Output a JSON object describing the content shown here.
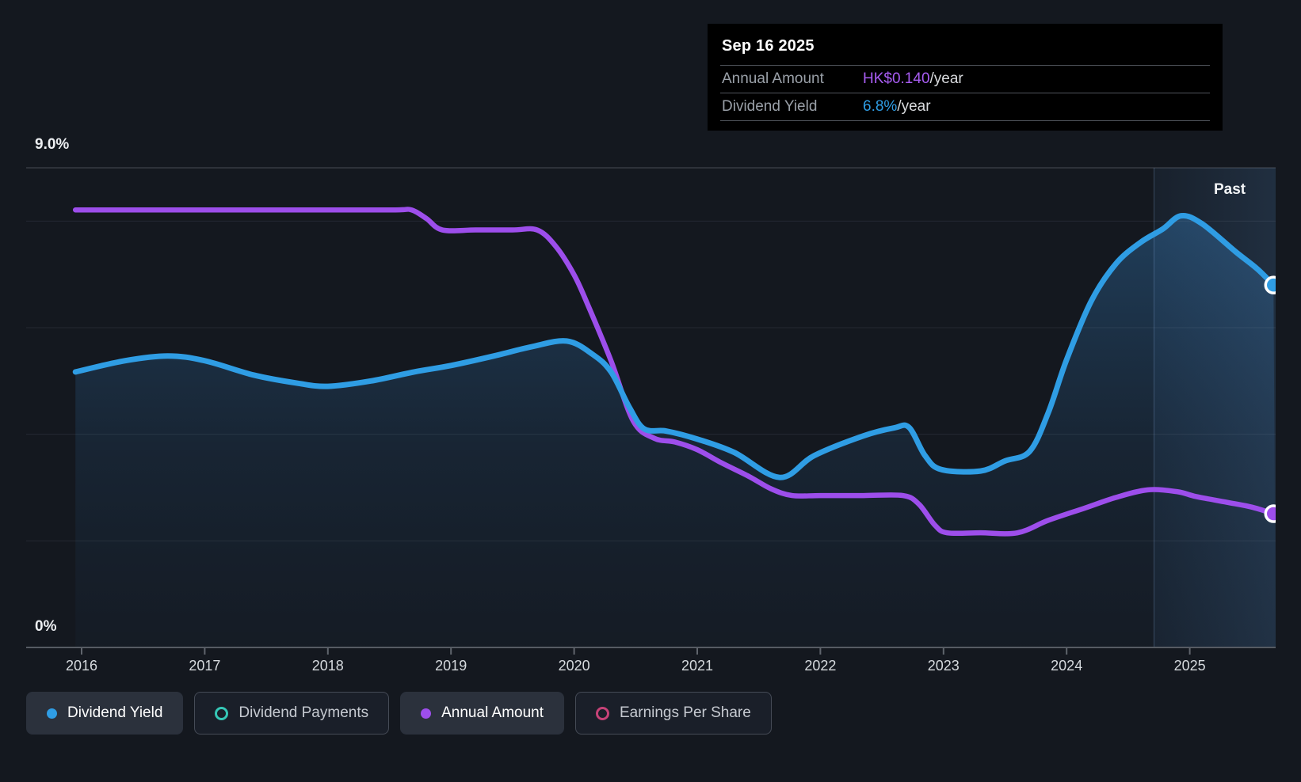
{
  "tooltip": {
    "date": "Sep 16 2025",
    "rows": [
      {
        "label": "Annual Amount",
        "value": "HK$0.140",
        "suffix": "/year",
        "color": "#a85df2"
      },
      {
        "label": "Dividend Yield",
        "value": "6.8%",
        "suffix": "/year",
        "color": "#2f9de4"
      }
    ]
  },
  "axis": {
    "y_max_label": "9.0%",
    "y_min_label": "0%"
  },
  "past_label": "Past",
  "legend": {
    "items": [
      {
        "label": "Dividend Yield",
        "state": "active",
        "marker": "dot",
        "color": "#2f9de4"
      },
      {
        "label": "Dividend Payments",
        "state": "inactive",
        "marker": "ring",
        "color": "#35c7b6"
      },
      {
        "label": "Annual Amount",
        "state": "active",
        "marker": "dot",
        "color": "#9d4eeb"
      },
      {
        "label": "Earnings Per Share",
        "state": "inactive",
        "marker": "ring",
        "color": "#c64277"
      }
    ]
  },
  "chart_data": {
    "type": "area",
    "title": "Dividend history",
    "x_axis": {
      "ticks": [
        2016,
        2017,
        2018,
        2019,
        2020,
        2021,
        2022,
        2023,
        2024,
        2025
      ],
      "domain": [
        2015.55,
        2025.72
      ]
    },
    "y_axis_yield": {
      "unit": "%",
      "domain": [
        0,
        9.0
      ],
      "max_line_pct": 9.0,
      "gridlines_pct": [
        8,
        6,
        4,
        2
      ],
      "zero_line_pct": 0
    },
    "y_axis_amount": {
      "unit": "HK$/year",
      "domain": [
        0,
        0.5
      ]
    },
    "past_region_start_year": 2024.71,
    "legend_position": "bottom",
    "grid": "on",
    "series": [
      {
        "name": "Dividend Yield",
        "unit": "%",
        "color": "#2f9de4",
        "area_fill": true,
        "points": [
          [
            2015.95,
            5.17
          ],
          [
            2016.35,
            5.38
          ],
          [
            2016.7,
            5.47
          ],
          [
            2017.0,
            5.38
          ],
          [
            2017.4,
            5.11
          ],
          [
            2017.75,
            4.96
          ],
          [
            2018.0,
            4.9
          ],
          [
            2018.35,
            5.0
          ],
          [
            2018.7,
            5.17
          ],
          [
            2019.0,
            5.29
          ],
          [
            2019.35,
            5.47
          ],
          [
            2019.65,
            5.64
          ],
          [
            2019.94,
            5.75
          ],
          [
            2020.15,
            5.5
          ],
          [
            2020.3,
            5.17
          ],
          [
            2020.45,
            4.5
          ],
          [
            2020.57,
            4.1
          ],
          [
            2020.75,
            4.06
          ],
          [
            2021.0,
            3.91
          ],
          [
            2021.3,
            3.66
          ],
          [
            2021.67,
            3.19
          ],
          [
            2021.95,
            3.6
          ],
          [
            2022.35,
            3.97
          ],
          [
            2022.6,
            4.12
          ],
          [
            2022.72,
            4.13
          ],
          [
            2022.85,
            3.6
          ],
          [
            2022.98,
            3.34
          ],
          [
            2023.3,
            3.31
          ],
          [
            2023.5,
            3.5
          ],
          [
            2023.7,
            3.68
          ],
          [
            2023.85,
            4.4
          ],
          [
            2024.0,
            5.4
          ],
          [
            2024.2,
            6.5
          ],
          [
            2024.4,
            7.2
          ],
          [
            2024.6,
            7.6
          ],
          [
            2024.78,
            7.85
          ],
          [
            2024.93,
            8.1
          ],
          [
            2025.1,
            7.95
          ],
          [
            2025.37,
            7.43
          ],
          [
            2025.55,
            7.1
          ],
          [
            2025.68,
            6.8
          ]
        ]
      },
      {
        "name": "Annual Amount",
        "unit": "HK$",
        "color": "#9d4eeb",
        "area_fill": false,
        "points": [
          [
            2015.95,
            0.458
          ],
          [
            2016.7,
            0.458
          ],
          [
            2017.4,
            0.458
          ],
          [
            2018.0,
            0.458
          ],
          [
            2018.55,
            0.458
          ],
          [
            2018.68,
            0.458
          ],
          [
            2018.8,
            0.449
          ],
          [
            2018.93,
            0.437
          ],
          [
            2019.2,
            0.437
          ],
          [
            2019.5,
            0.437
          ],
          [
            2019.7,
            0.437
          ],
          [
            2019.85,
            0.42
          ],
          [
            2020.0,
            0.39
          ],
          [
            2020.11,
            0.359
          ],
          [
            2020.3,
            0.3
          ],
          [
            2020.48,
            0.237
          ],
          [
            2020.65,
            0.219
          ],
          [
            2020.82,
            0.215
          ],
          [
            2021.0,
            0.207
          ],
          [
            2021.2,
            0.193
          ],
          [
            2021.42,
            0.179
          ],
          [
            2021.6,
            0.166
          ],
          [
            2021.77,
            0.159
          ],
          [
            2022.0,
            0.159
          ],
          [
            2022.35,
            0.159
          ],
          [
            2022.67,
            0.159
          ],
          [
            2022.8,
            0.15
          ],
          [
            2022.93,
            0.128
          ],
          [
            2023.03,
            0.12
          ],
          [
            2023.3,
            0.12
          ],
          [
            2023.6,
            0.12
          ],
          [
            2023.85,
            0.133
          ],
          [
            2024.15,
            0.146
          ],
          [
            2024.4,
            0.157
          ],
          [
            2024.66,
            0.165
          ],
          [
            2024.9,
            0.163
          ],
          [
            2025.05,
            0.158
          ],
          [
            2025.3,
            0.152
          ],
          [
            2025.5,
            0.147
          ],
          [
            2025.68,
            0.14
          ]
        ]
      }
    ],
    "end_markers": [
      {
        "series": "Dividend Yield",
        "x": 2025.68,
        "value": 6.8
      },
      {
        "series": "Annual Amount",
        "x": 2025.68,
        "value": 0.14
      }
    ]
  }
}
